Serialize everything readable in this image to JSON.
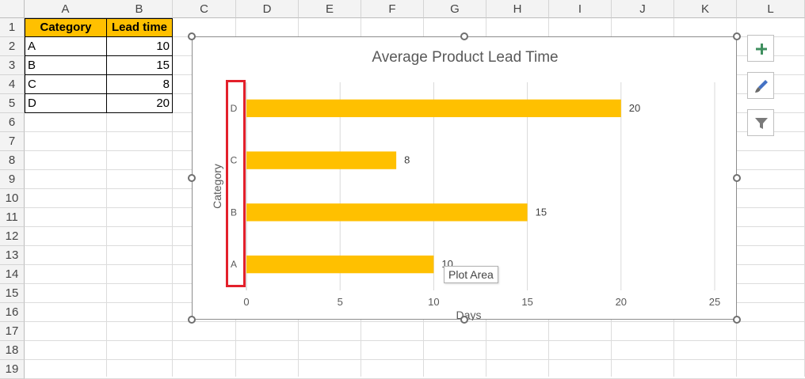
{
  "spreadsheet": {
    "columns": [
      "A",
      "B",
      "C",
      "D",
      "E",
      "F",
      "G",
      "H",
      "I",
      "J",
      "K",
      "L"
    ],
    "rows": [
      "1",
      "2",
      "3",
      "4",
      "5",
      "6",
      "7",
      "8",
      "9",
      "10",
      "11",
      "12",
      "13",
      "14",
      "15",
      "16",
      "17",
      "18",
      "19"
    ],
    "table": {
      "headers": [
        "Category",
        "Lead time"
      ],
      "rows": [
        {
          "category": "A",
          "lead_time": "10"
        },
        {
          "category": "B",
          "lead_time": "15"
        },
        {
          "category": "C",
          "lead_time": "8"
        },
        {
          "category": "D",
          "lead_time": "20"
        }
      ]
    },
    "header_fill": "#ffc000"
  },
  "chart": {
    "tooltip": "Plot Area",
    "side_buttons": [
      "plus-icon",
      "brush-icon",
      "filter-icon"
    ]
  },
  "chart_data": {
    "type": "bar",
    "orientation": "horizontal",
    "title": "Average Product Lead Time",
    "xlabel": "Days",
    "ylabel": "Category",
    "categories": [
      "A",
      "B",
      "C",
      "D"
    ],
    "values": [
      10,
      15,
      8,
      20
    ],
    "data_labels": [
      "10",
      "15",
      "8",
      "20"
    ],
    "xlim": [
      0,
      25
    ],
    "x_ticks": [
      "0",
      "5",
      "10",
      "15",
      "20",
      "25"
    ],
    "grid": "vertical",
    "bar_color": "#ffc000",
    "legend": "none"
  }
}
